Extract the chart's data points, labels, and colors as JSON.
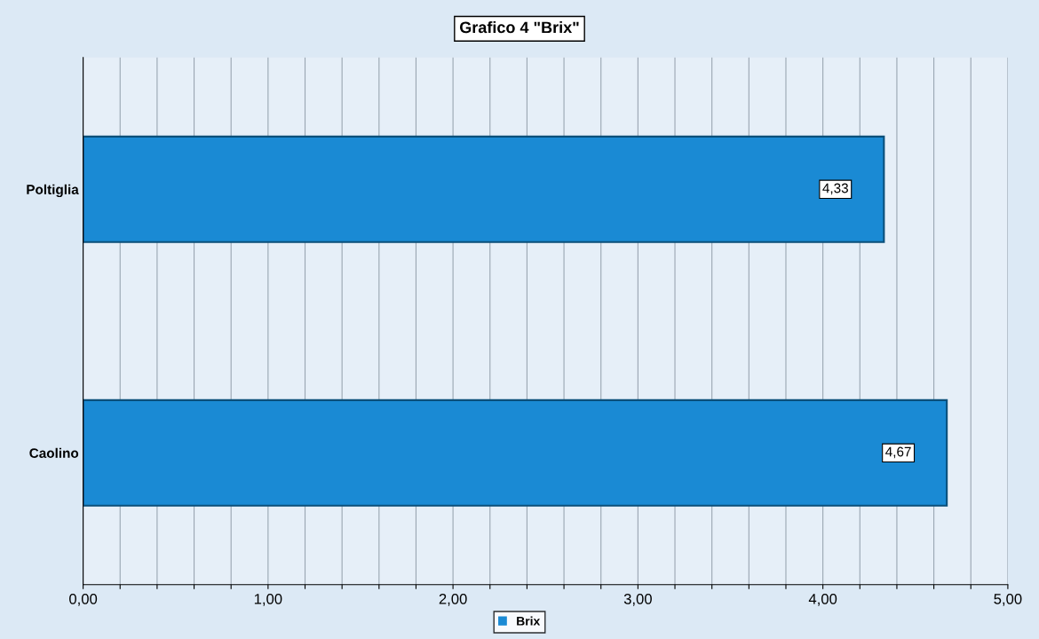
{
  "chart_data": {
    "type": "bar",
    "orientation": "horizontal",
    "title": "Grafico 4 \"Brix\"",
    "categories": [
      "Poltiglia",
      "Caolino"
    ],
    "series": [
      {
        "name": "Brix",
        "color": "#1a8ad4",
        "values": [
          4.33,
          4.67
        ],
        "value_labels": [
          "4,33",
          "4,67"
        ]
      }
    ],
    "xlim": [
      0,
      5
    ],
    "xticks": [
      {
        "value": 0,
        "label": "0,00"
      },
      {
        "value": 0.2,
        "label": null
      },
      {
        "value": 0.4,
        "label": null
      },
      {
        "value": 0.6,
        "label": null
      },
      {
        "value": 0.8,
        "label": null
      },
      {
        "value": 1,
        "label": "1,00"
      },
      {
        "value": 1.2,
        "label": null
      },
      {
        "value": 1.4,
        "label": null
      },
      {
        "value": 1.6,
        "label": null
      },
      {
        "value": 1.8,
        "label": null
      },
      {
        "value": 2,
        "label": "2,00"
      },
      {
        "value": 2.2,
        "label": null
      },
      {
        "value": 2.4,
        "label": null
      },
      {
        "value": 2.6,
        "label": null
      },
      {
        "value": 2.8,
        "label": null
      },
      {
        "value": 3,
        "label": "3,00"
      },
      {
        "value": 3.2,
        "label": null
      },
      {
        "value": 3.4,
        "label": null
      },
      {
        "value": 3.6,
        "label": null
      },
      {
        "value": 3.8,
        "label": null
      },
      {
        "value": 4,
        "label": "4,00"
      },
      {
        "value": 4.2,
        "label": null
      },
      {
        "value": 4.4,
        "label": null
      },
      {
        "value": 4.6,
        "label": null
      },
      {
        "value": 4.8,
        "label": null
      },
      {
        "value": 5,
        "label": "5,00"
      }
    ],
    "grid": "x",
    "legend": "bottom"
  }
}
